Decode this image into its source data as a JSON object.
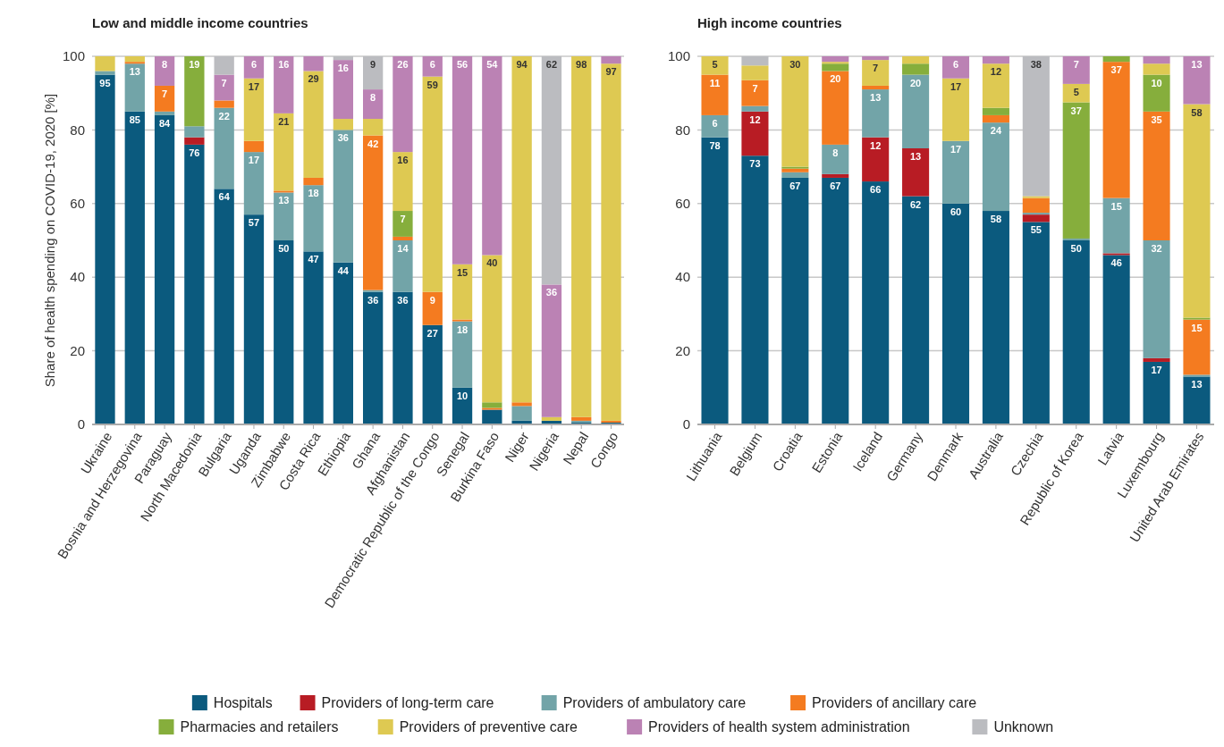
{
  "chart_data": [
    {
      "type": "bar",
      "stacked": true,
      "title": "Low and middle income countries",
      "ylabel": "Share of health spending on COVID-19, 2020 [%]",
      "ylim": [
        0,
        100
      ],
      "yticks": [
        0,
        20,
        40,
        60,
        80,
        100
      ],
      "grid": "y",
      "legend": "bottom",
      "categories": [
        "Ukraine",
        "Bosnia and Herzegovina",
        "Paraguay",
        "North Macedonia",
        "Bulgaria",
        "Uganda",
        "Zimbabwe",
        "Costa Rica",
        "Ethiopia",
        "Ghana",
        "Afghanistan",
        "Democratic Republic of the Congo",
        "Senegal",
        "Burkina Faso",
        "Niger",
        "Nigeria",
        "Nepal",
        "Congo"
      ],
      "series": [
        {
          "name": "Hospitals",
          "color": "#0b5a7e",
          "values": [
            95,
            85,
            84,
            76,
            64,
            57,
            50,
            47,
            44,
            36,
            36,
            27,
            10,
            4,
            1,
            1,
            0.5,
            0.5
          ],
          "value_labels": [
            "95",
            "85",
            "84",
            "76",
            "64",
            "57",
            "50",
            "47",
            "44",
            "36",
            "36",
            "27",
            "10",
            null,
            null,
            null,
            null,
            null
          ]
        },
        {
          "name": "Providers of long-term care",
          "color": "#b81c24",
          "values": [
            0,
            0,
            0,
            2,
            0,
            0,
            0,
            0,
            0,
            0,
            0,
            0,
            0,
            0,
            0,
            0,
            0,
            0
          ],
          "value_labels": [
            null,
            null,
            null,
            null,
            null,
            null,
            null,
            null,
            null,
            null,
            null,
            null,
            null,
            null,
            null,
            null,
            null,
            null
          ]
        },
        {
          "name": "Providers of ambulatory care",
          "color": "#72a4a8",
          "values": [
            1,
            13,
            1,
            3,
            22,
            17,
            13,
            18,
            36,
            0.5,
            14,
            0,
            18,
            0,
            4,
            0,
            0.5,
            0
          ],
          "value_labels": [
            null,
            "13",
            null,
            null,
            "22",
            "17",
            "13",
            "18",
            "36",
            null,
            "14",
            null,
            "18",
            null,
            null,
            null,
            null,
            null
          ]
        },
        {
          "name": "Providers of ancillary care",
          "color": "#f47b20",
          "values": [
            0,
            0.5,
            7,
            0,
            2,
            3,
            0.5,
            2,
            0,
            42,
            1,
            9,
            0.5,
            0.5,
            1,
            0,
            1,
            0.5
          ],
          "value_labels": [
            null,
            null,
            "7",
            null,
            null,
            null,
            null,
            null,
            null,
            "42",
            null,
            "9",
            null,
            null,
            null,
            null,
            null,
            null
          ]
        },
        {
          "name": "Pharmacies and retailers",
          "color": "#86ae3c",
          "values": [
            0,
            0,
            0,
            19,
            0,
            0,
            0,
            0,
            0,
            0,
            7,
            0,
            0,
            1.5,
            0,
            0,
            0,
            0
          ],
          "value_labels": [
            null,
            null,
            null,
            "19",
            null,
            null,
            null,
            null,
            null,
            null,
            "7",
            null,
            null,
            null,
            null,
            null,
            null,
            null
          ]
        },
        {
          "name": "Providers of preventive care",
          "color": "#dec952",
          "values": [
            4,
            1.5,
            0,
            0,
            0,
            17,
            21,
            29,
            3,
            4.5,
            16,
            58.5,
            15,
            40,
            94,
            1,
            98,
            97
          ],
          "value_labels": [
            null,
            null,
            null,
            null,
            null,
            "17",
            "21",
            "29",
            null,
            null,
            "16",
            "59",
            "15",
            "40",
            "94",
            null,
            "98",
            "97"
          ]
        },
        {
          "name": "Providers of health system administration",
          "color": "#bb82b4",
          "values": [
            0,
            0,
            8,
            0,
            7,
            6,
            15.5,
            4,
            16,
            8,
            26,
            5.5,
            56.5,
            54,
            0,
            36,
            0,
            2
          ],
          "value_labels": [
            null,
            null,
            "8",
            null,
            "7",
            "6",
            "16",
            null,
            "16",
            "8",
            "26",
            "6",
            "56",
            "54",
            null,
            "36",
            null,
            null
          ]
        },
        {
          "name": "Unknown",
          "color": "#bbbcc0",
          "values": [
            0,
            0,
            0,
            0,
            5,
            0,
            0,
            0,
            1,
            9,
            0,
            0,
            0,
            0,
            0,
            62,
            0,
            0
          ],
          "value_labels": [
            null,
            null,
            null,
            null,
            null,
            null,
            null,
            null,
            null,
            "9",
            null,
            null,
            null,
            null,
            null,
            "62",
            null,
            null
          ]
        }
      ]
    },
    {
      "type": "bar",
      "stacked": true,
      "title": "High income countries",
      "ylim": [
        0,
        100
      ],
      "yticks": [
        0,
        20,
        40,
        60,
        80,
        100
      ],
      "grid": "y",
      "categories": [
        "Lithuania",
        "Belgium",
        "Croatia",
        "Estonia",
        "Iceland",
        "Germany",
        "Denmark",
        "Australia",
        "Czechia",
        "Republic of Korea",
        "Latvia",
        "Luxembourg",
        "United Arab Emirates"
      ],
      "series": [
        {
          "color": "#0b5a7e",
          "values": [
            78,
            73,
            67,
            67,
            66,
            62,
            60,
            58,
            55,
            50,
            46,
            17,
            13
          ],
          "value_labels": [
            "78",
            "73",
            "67",
            "67",
            "66",
            "62",
            "60",
            "58",
            "55",
            "50",
            "46",
            "17",
            "13"
          ]
        },
        {
          "color": "#b81c24",
          "values": [
            0,
            12,
            0,
            1,
            12,
            13,
            0,
            0,
            2,
            0,
            0.5,
            1,
            0
          ],
          "value_labels": [
            null,
            "12",
            null,
            null,
            "12",
            "13",
            null,
            null,
            null,
            null,
            null,
            null,
            null
          ]
        },
        {
          "color": "#72a4a8",
          "values": [
            6,
            1.5,
            1.5,
            8,
            13,
            20,
            17,
            24,
            0.5,
            0.5,
            15,
            32,
            0.5
          ],
          "value_labels": [
            "6",
            null,
            null,
            "8",
            "13",
            "20",
            "17",
            "24",
            null,
            null,
            "15",
            "32",
            null
          ]
        },
        {
          "color": "#f47b20",
          "values": [
            11,
            7,
            1,
            20,
            1,
            0,
            0,
            2,
            4,
            0,
            37,
            35,
            15
          ],
          "value_labels": [
            "11",
            "7",
            null,
            "20",
            null,
            null,
            null,
            null,
            null,
            null,
            "37",
            "35",
            "15"
          ]
        },
        {
          "color": "#86ae3c",
          "values": [
            0,
            0,
            0.5,
            2,
            0,
            3,
            0,
            2,
            0,
            37,
            1.5,
            10,
            0.5
          ],
          "value_labels": [
            null,
            null,
            null,
            null,
            null,
            null,
            null,
            null,
            null,
            "37",
            null,
            "10",
            null
          ]
        },
        {
          "color": "#dec952",
          "values": [
            5,
            4,
            30,
            0.5,
            7,
            2,
            17,
            12,
            0.5,
            5,
            0,
            3,
            58
          ],
          "value_labels": [
            "5",
            null,
            "30",
            null,
            "7",
            null,
            "17",
            "12",
            null,
            "5",
            null,
            null,
            "58"
          ]
        },
        {
          "color": "#bb82b4",
          "values": [
            0,
            0,
            0,
            1.5,
            1,
            0,
            6,
            2,
            0,
            7.5,
            0,
            2,
            13
          ],
          "value_labels": [
            null,
            null,
            null,
            null,
            null,
            null,
            "6",
            null,
            null,
            "7",
            null,
            null,
            "13"
          ]
        },
        {
          "color": "#bbbcc0",
          "values": [
            0,
            2.5,
            0,
            0,
            0,
            0,
            0,
            0,
            38,
            0,
            0,
            0,
            0
          ],
          "value_labels": [
            null,
            null,
            null,
            null,
            null,
            null,
            null,
            null,
            "38",
            null,
            null,
            null,
            null
          ]
        }
      ]
    }
  ]
}
